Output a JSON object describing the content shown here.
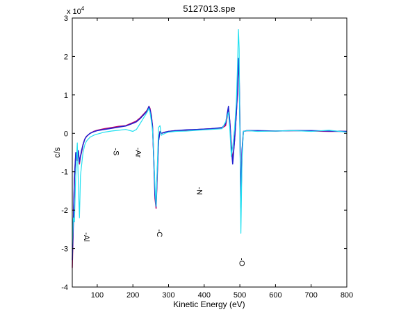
{
  "chart_data": {
    "type": "line",
    "title": "5127013.spe",
    "xlabel": "Kinetic Energy (eV)",
    "ylabel": "c/s",
    "y_exponent_base": "x 10",
    "y_exponent_power": "4",
    "xlim": [
      30,
      800
    ],
    "ylim": [
      -4,
      3
    ],
    "grid": false,
    "x_ticks": [
      100,
      200,
      300,
      400,
      500,
      600,
      700,
      800
    ],
    "y_ticks": [
      -4,
      -3,
      -2,
      -1,
      0,
      1,
      2,
      3
    ],
    "series_colors": [
      "#c0006a",
      "#2020d0",
      "#20e0f0"
    ],
    "series": [
      {
        "color": "#c0006a",
        "x": [
          30,
          33,
          36,
          40,
          44,
          47,
          50,
          53,
          56,
          60,
          65,
          70,
          80,
          90,
          100,
          120,
          140,
          160,
          180,
          200,
          210,
          220,
          230,
          240,
          245,
          248,
          252,
          255,
          258,
          262,
          265,
          268,
          272,
          276,
          280,
          290,
          300,
          320,
          350,
          380,
          420,
          450,
          460,
          468,
          472,
          476,
          480,
          485,
          490,
          493,
          496,
          498,
          500,
          503,
          506,
          510,
          515,
          520,
          550,
          600,
          650,
          700,
          750,
          800
        ],
        "y": [
          -3.5,
          -2.4,
          -1.2,
          -0.5,
          -0.7,
          -0.45,
          -0.8,
          -0.6,
          -0.5,
          -0.3,
          -0.15,
          -0.08,
          0.0,
          0.05,
          0.08,
          0.12,
          0.15,
          0.18,
          0.2,
          0.28,
          0.32,
          0.4,
          0.5,
          0.6,
          0.7,
          0.65,
          0.45,
          0.2,
          -0.5,
          -1.7,
          -1.95,
          -1.2,
          -0.2,
          0.05,
          0.0,
          0.03,
          0.05,
          0.07,
          0.08,
          0.1,
          0.12,
          0.14,
          0.2,
          0.6,
          0.3,
          -0.3,
          -0.7,
          -0.2,
          0.5,
          1.0,
          1.9,
          1.5,
          0.4,
          -1.95,
          -0.5,
          0.05,
          0.06,
          0.07,
          0.06,
          0.06,
          0.07,
          0.06,
          0.05,
          0.05
        ]
      },
      {
        "color": "#2020d0",
        "x": [
          30,
          33,
          36,
          40,
          44,
          47,
          50,
          53,
          56,
          60,
          65,
          70,
          80,
          90,
          100,
          120,
          140,
          160,
          180,
          200,
          210,
          220,
          230,
          240,
          245,
          248,
          252,
          255,
          258,
          262,
          265,
          268,
          272,
          276,
          280,
          290,
          300,
          320,
          350,
          380,
          420,
          450,
          460,
          468,
          472,
          476,
          480,
          485,
          490,
          493,
          496,
          498,
          500,
          503,
          506,
          510,
          515,
          520,
          550,
          600,
          650,
          700,
          750,
          800
        ],
        "y": [
          -3.3,
          -2.3,
          -1.15,
          -0.5,
          -0.65,
          -0.45,
          -0.75,
          -0.6,
          -0.45,
          -0.3,
          -0.15,
          -0.08,
          0.0,
          0.04,
          0.07,
          0.1,
          0.13,
          0.16,
          0.19,
          0.26,
          0.3,
          0.38,
          0.48,
          0.58,
          0.7,
          0.62,
          0.42,
          0.18,
          -0.55,
          -1.6,
          -1.9,
          -1.1,
          -0.2,
          0.04,
          0.0,
          0.03,
          0.05,
          0.07,
          0.09,
          0.1,
          0.12,
          0.15,
          0.25,
          0.7,
          0.3,
          -0.35,
          -0.8,
          -0.2,
          0.5,
          1.05,
          1.95,
          1.6,
          0.3,
          -1.9,
          -0.45,
          0.05,
          0.06,
          0.07,
          0.07,
          0.06,
          0.07,
          0.07,
          0.06,
          0.05
        ]
      },
      {
        "color": "#20e0f0",
        "x": [
          30,
          33,
          36,
          40,
          44,
          47,
          50,
          53,
          56,
          60,
          65,
          70,
          80,
          90,
          100,
          120,
          140,
          160,
          180,
          200,
          210,
          220,
          230,
          240,
          245,
          248,
          252,
          255,
          258,
          262,
          265,
          268,
          272,
          276,
          280,
          290,
          300,
          320,
          350,
          380,
          420,
          450,
          460,
          468,
          472,
          476,
          480,
          485,
          490,
          493,
          496,
          498,
          500,
          503,
          506,
          510,
          515,
          520,
          550,
          600,
          650,
          700,
          750,
          800
        ],
        "y": [
          -2.9,
          -2.2,
          -2.3,
          -1.0,
          -0.25,
          -1.3,
          -2.2,
          -1.1,
          -0.85,
          -0.5,
          -0.3,
          -0.2,
          -0.1,
          -0.05,
          -0.02,
          0.03,
          0.06,
          0.08,
          0.1,
          0.05,
          0.1,
          0.25,
          0.4,
          0.55,
          0.65,
          0.55,
          0.3,
          0.1,
          -0.45,
          -1.4,
          -1.9,
          -1.0,
          0.15,
          0.2,
          -0.05,
          0.0,
          0.03,
          0.05,
          0.06,
          0.08,
          0.1,
          0.12,
          0.3,
          0.55,
          0.1,
          -0.6,
          -0.35,
          0.1,
          0.8,
          1.6,
          2.7,
          2.2,
          0.1,
          -2.6,
          -0.7,
          0.05,
          0.06,
          0.07,
          0.05,
          0.06,
          0.07,
          0.05,
          0.08,
          0.03
        ]
      }
    ],
    "annotations": [
      {
        "text": "-Al",
        "x": 63,
        "y": -2.7
      },
      {
        "text": "-S",
        "x": 146,
        "y": -0.48
      },
      {
        "text": "-Ar",
        "x": 208,
        "y": -0.5
      },
      {
        "text": "-C",
        "x": 268,
        "y": -2.6
      },
      {
        "text": "-N",
        "x": 380,
        "y": -1.5
      },
      {
        "text": "-O",
        "x": 499,
        "y": -3.35
      }
    ]
  }
}
